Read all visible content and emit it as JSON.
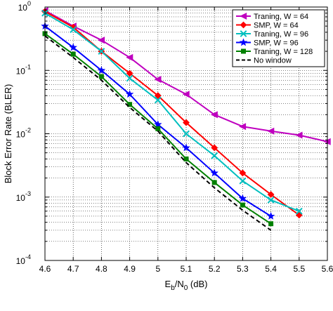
{
  "chart_data": {
    "type": "line",
    "xlabel_base": "E",
    "xlabel_sub1": "b",
    "xlabel_mid": "/N",
    "xlabel_sub2": "0",
    "xlabel_unit": " (dB)",
    "ylabel": "Block Error Rate (BLER)",
    "xlim": [
      4.6,
      5.6
    ],
    "ylim": [
      0.0001,
      1
    ],
    "y_scale": "log",
    "grid": "dotted",
    "legend_position": "top-right",
    "x_ticks": [
      4.6,
      4.7,
      4.8,
      4.9,
      5,
      5.1,
      5.2,
      5.3,
      5.4,
      5.5,
      5.6
    ],
    "x_tick_labels": [
      "4.6",
      "4.7",
      "4.8",
      "4.9",
      "5",
      "5.1",
      "5.2",
      "5.3",
      "5.4",
      "5.5",
      "5.6"
    ],
    "y_ticks": [
      {
        "value": 1,
        "base": "10",
        "exp": "0"
      },
      {
        "value": 0.1,
        "base": "10",
        "exp": "-1"
      },
      {
        "value": 0.01,
        "base": "10",
        "exp": "-2"
      },
      {
        "value": 0.001,
        "base": "10",
        "exp": "-3"
      },
      {
        "value": 0.0001,
        "base": "10",
        "exp": "-4"
      }
    ],
    "series": [
      {
        "name": "Traning, W = 64",
        "color": "#bf00bf",
        "marker": "triangle-left",
        "dash": "solid",
        "x": [
          4.6,
          4.7,
          4.8,
          4.9,
          5.0,
          5.1,
          5.2,
          5.3,
          5.4,
          5.5,
          5.6
        ],
        "y": [
          0.88,
          0.5,
          0.3,
          0.16,
          0.072,
          0.042,
          0.02,
          0.013,
          0.011,
          0.0095,
          0.0075
        ]
      },
      {
        "name": "SMP, W = 64",
        "color": "#ff0000",
        "marker": "diamond",
        "dash": "solid",
        "x": [
          4.6,
          4.7,
          4.8,
          4.9,
          5.0,
          5.1,
          5.2,
          5.3,
          5.4,
          5.5
        ],
        "y": [
          0.85,
          0.48,
          0.2,
          0.09,
          0.04,
          0.015,
          0.006,
          0.0024,
          0.0011,
          0.00052
        ]
      },
      {
        "name": "Traning, W = 96",
        "color": "#00bfbf",
        "marker": "x",
        "dash": "solid",
        "x": [
          4.6,
          4.7,
          4.8,
          4.9,
          5.0,
          5.1,
          5.2,
          5.3,
          5.4,
          5.5
        ],
        "y": [
          0.8,
          0.44,
          0.2,
          0.075,
          0.034,
          0.01,
          0.0045,
          0.0018,
          0.0009,
          0.0006
        ]
      },
      {
        "name": "SMP, W = 96",
        "color": "#0000ff",
        "marker": "star",
        "dash": "solid",
        "x": [
          4.6,
          4.7,
          4.8,
          4.9,
          5.0,
          5.1,
          5.2,
          5.3,
          5.4
        ],
        "y": [
          0.5,
          0.23,
          0.1,
          0.042,
          0.014,
          0.006,
          0.0024,
          0.00095,
          0.0005
        ]
      },
      {
        "name": "Traning, W = 128",
        "color": "#008000",
        "marker": "square",
        "dash": "solid",
        "x": [
          4.6,
          4.7,
          4.8,
          4.9,
          5.0,
          5.1,
          5.2,
          5.3,
          5.4
        ],
        "y": [
          0.38,
          0.18,
          0.08,
          0.029,
          0.012,
          0.004,
          0.0017,
          0.00075,
          0.00038
        ]
      },
      {
        "name": "No window",
        "color": "#000000",
        "marker": "none",
        "dash": "dashed",
        "x": [
          4.6,
          4.7,
          4.8,
          4.9,
          5.0,
          5.1,
          5.2,
          5.3,
          5.4
        ],
        "y": [
          0.35,
          0.16,
          0.07,
          0.026,
          0.011,
          0.0035,
          0.0014,
          0.00062,
          0.0003
        ]
      }
    ]
  }
}
